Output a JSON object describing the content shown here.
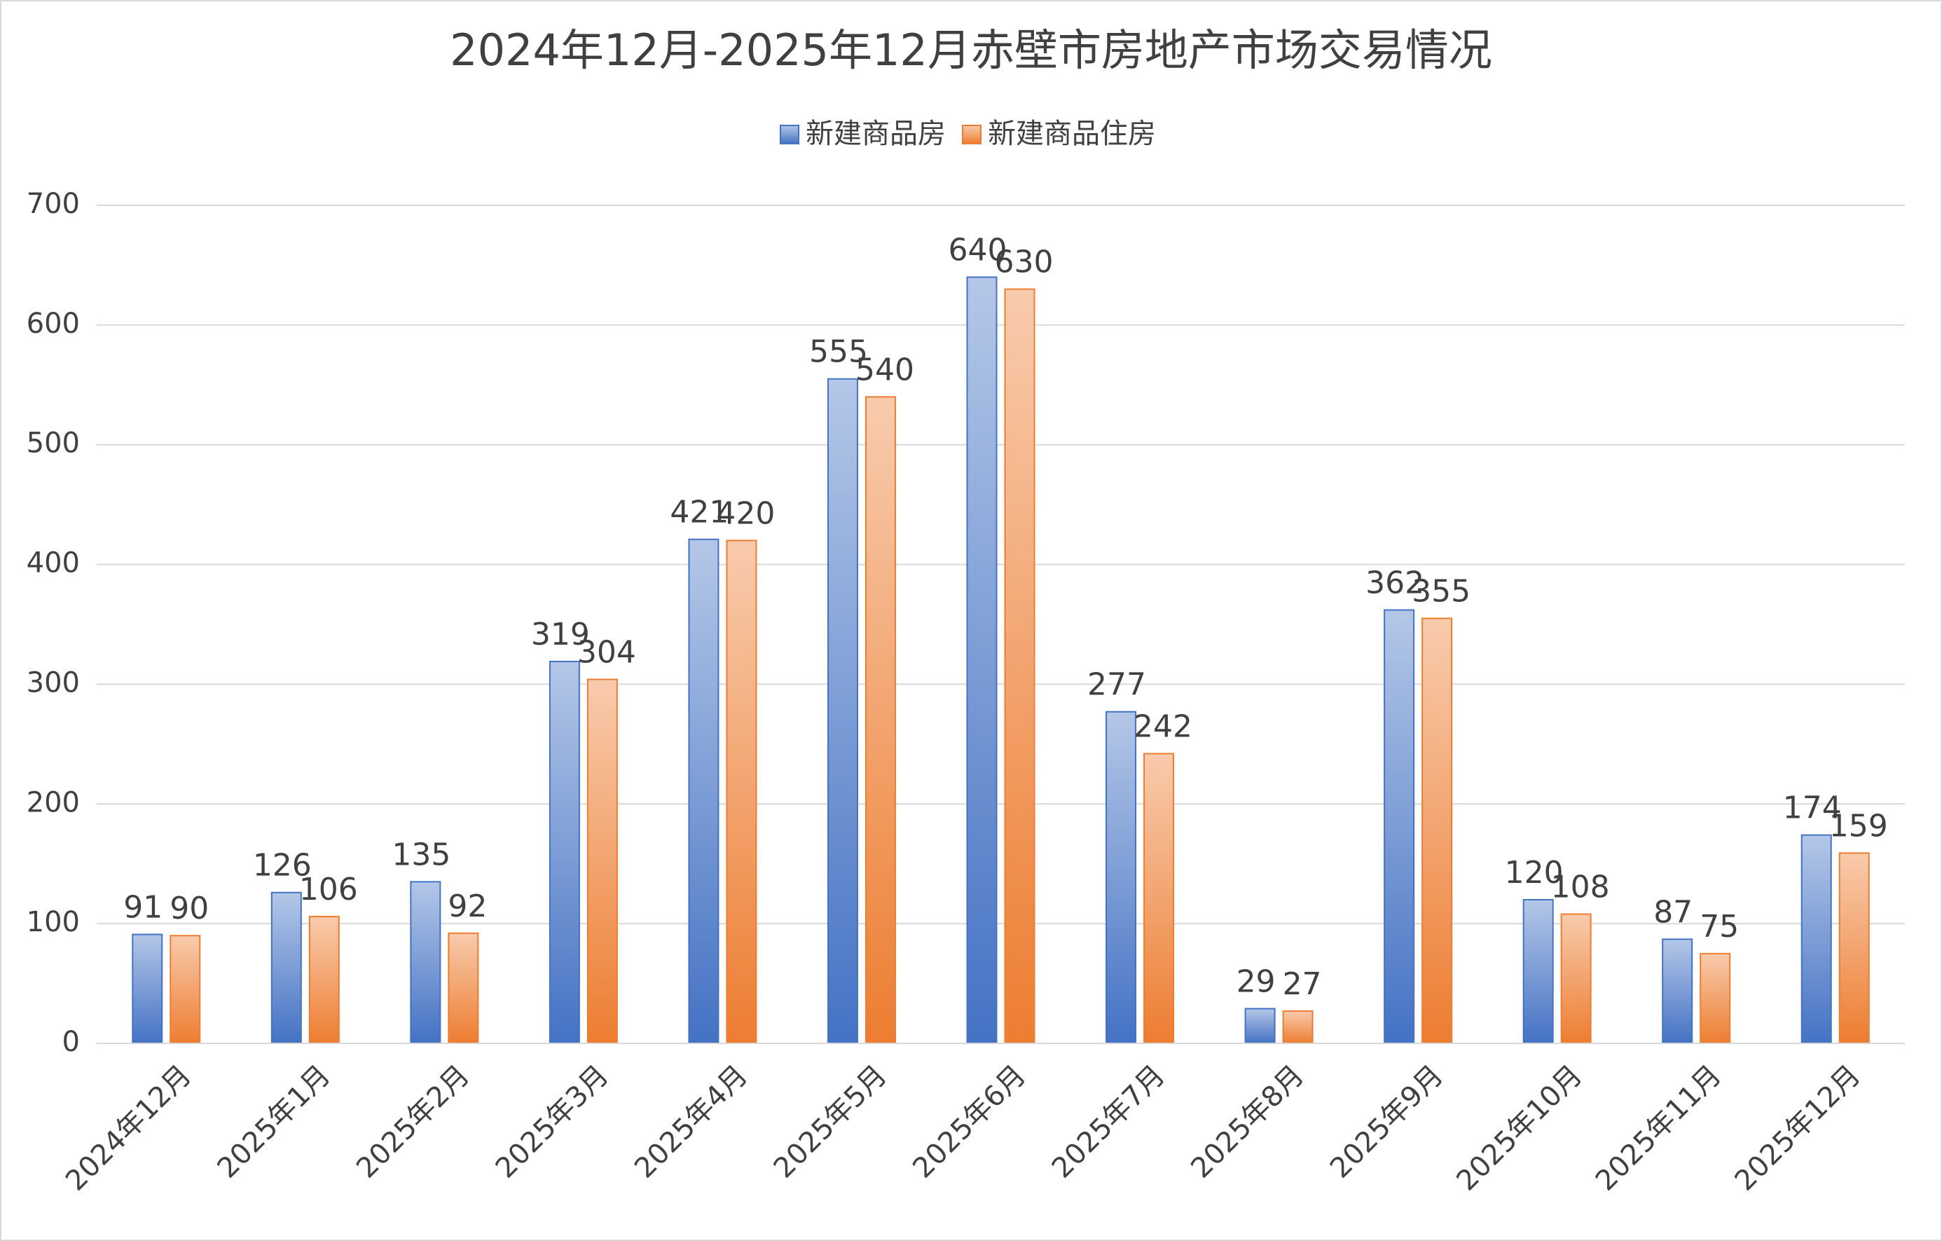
{
  "chart_data": {
    "type": "bar",
    "title": "2024年12月-2025年12月赤壁市房地产市场交易情况",
    "categories": [
      "2024年12月",
      "2025年1月",
      "2025年2月",
      "2025年3月",
      "2025年4月",
      "2025年5月",
      "2025年6月",
      "2025年7月",
      "2025年8月",
      "2025年9月",
      "2025年10月",
      "2025年11月",
      "2025年12月"
    ],
    "series": [
      {
        "name": "新建商品房",
        "color": "#4472c4",
        "values": [
          91,
          126,
          135,
          319,
          421,
          555,
          640,
          277,
          29,
          362,
          120,
          87,
          174
        ]
      },
      {
        "name": "新建商品住房",
        "color": "#ed7d31",
        "values": [
          90,
          106,
          92,
          304,
          420,
          540,
          630,
          242,
          27,
          355,
          108,
          75,
          159
        ]
      }
    ],
    "ylim": [
      0,
      700
    ],
    "yticks": [
      0,
      100,
      200,
      300,
      400,
      500,
      600,
      700
    ],
    "grid": true,
    "legend": "top"
  }
}
